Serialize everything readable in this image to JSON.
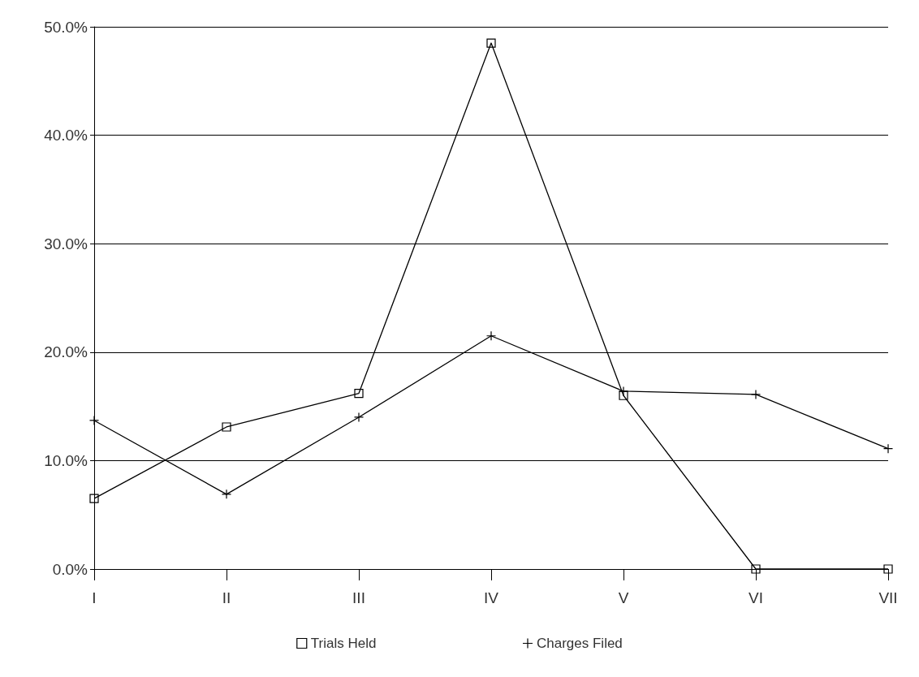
{
  "chart_data": {
    "type": "line",
    "categories": [
      "I",
      "II",
      "III",
      "IV",
      "V",
      "VI",
      "VII"
    ],
    "series": [
      {
        "name": "Trials Held",
        "color": "#000000",
        "marker": "square",
        "values": [
          6.5,
          13.1,
          16.2,
          48.5,
          16.0,
          0,
          0
        ]
      },
      {
        "name": "Charges Filed",
        "color": "#000000",
        "marker": "cross",
        "values": [
          13.7,
          6.9,
          14.0,
          21.5,
          16.4,
          16.1,
          11.1
        ]
      }
    ],
    "ylim": [
      0,
      50
    ],
    "yticks": [
      {
        "value": 0,
        "label": "0.0%"
      },
      {
        "value": 10,
        "label": "10.0%"
      },
      {
        "value": 20,
        "label": "20.0%"
      },
      {
        "value": 30,
        "label": "30.0%"
      },
      {
        "value": 40,
        "label": "40.0%"
      },
      {
        "value": 50,
        "label": "50.0%"
      }
    ],
    "grid": "y",
    "legend": "bottom"
  }
}
